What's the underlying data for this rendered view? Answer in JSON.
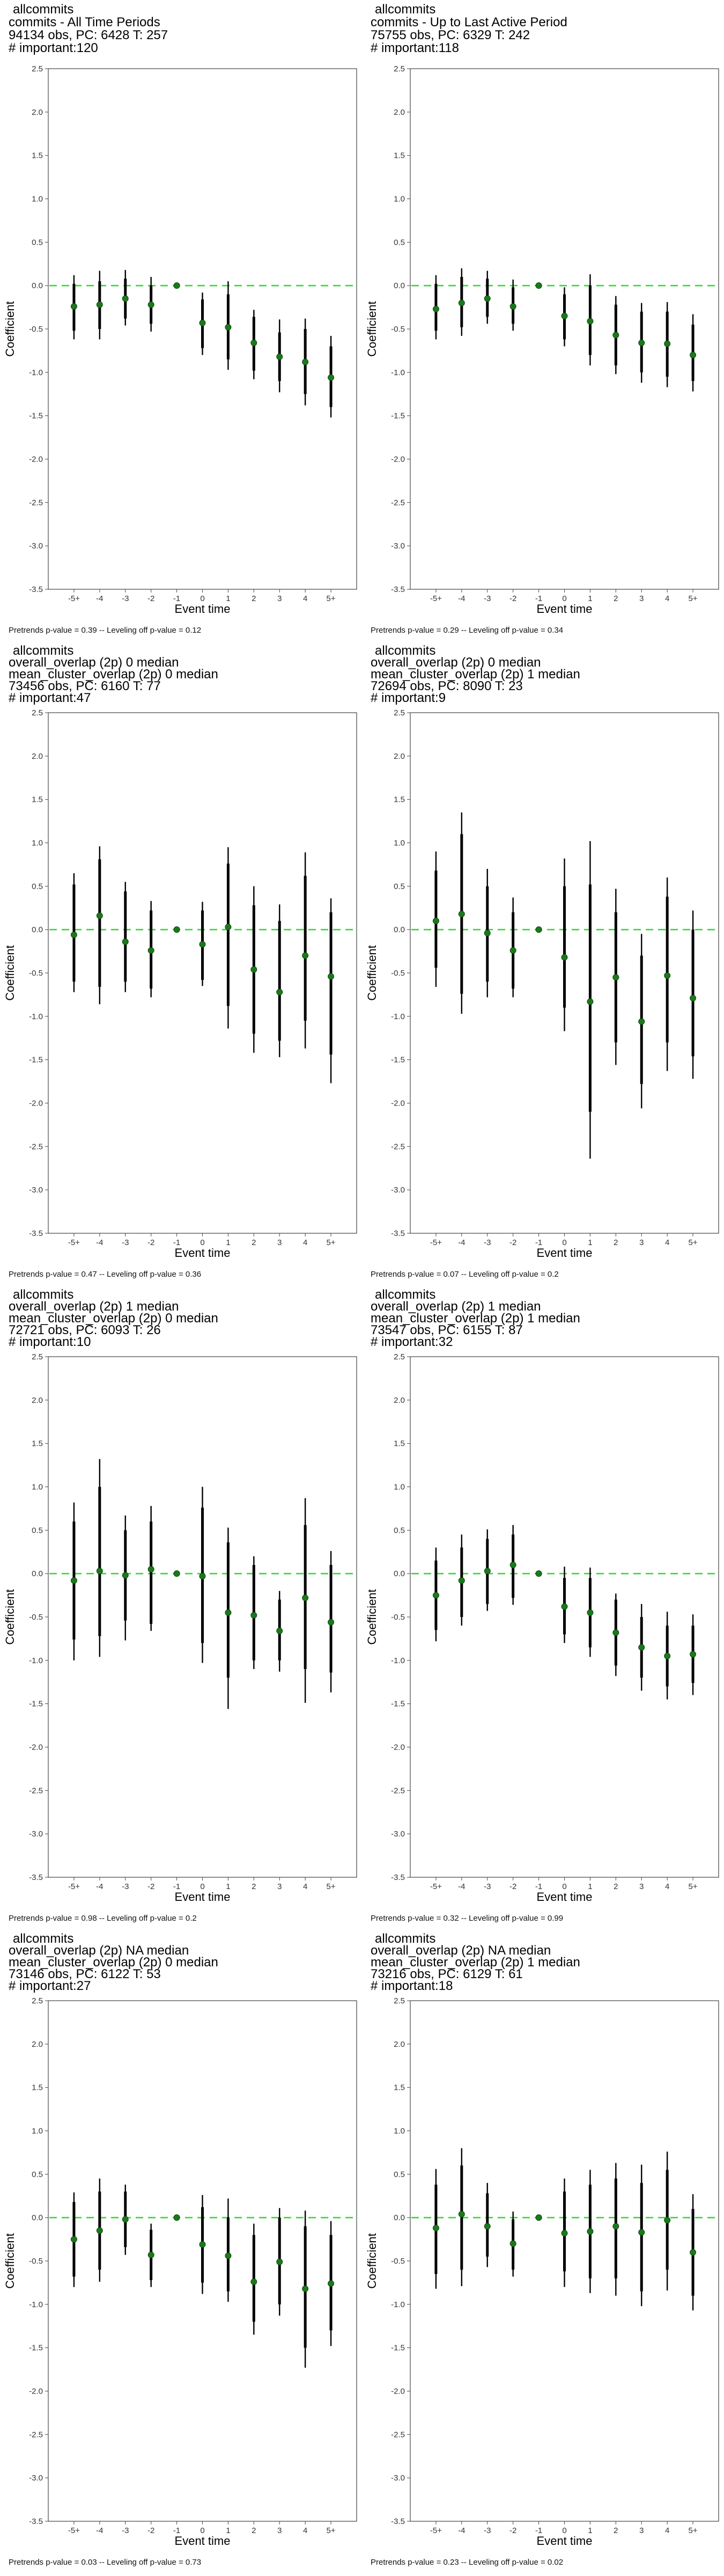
{
  "chart_data": [
    {
      "type": "scatter",
      "title_lines": [
        "allcommits",
        "commits - All Time Periods",
        "94134 obs, PC: 6428 T: 257",
        "# important:120"
      ],
      "footer": "Pretrends p-value = 0.39 -- Leveling off p-value = 0.12",
      "xlabel": "Event time",
      "ylabel": "Coefficient",
      "categories": [
        "-5+",
        "-4",
        "-3",
        "-2",
        "-1",
        "0",
        "1",
        "2",
        "3",
        "4",
        "5+"
      ],
      "ylim": [
        -3.5,
        2.5
      ],
      "yticks": [
        "-3.5",
        "-3.0",
        "-2.5",
        "-2.0",
        "-1.5",
        "-1.0",
        "-0.5",
        "0.0",
        "0.5",
        "1.0",
        "1.5",
        "2.0",
        "2.5"
      ],
      "reference_line": 0,
      "estimate": [
        -0.24,
        -0.22,
        -0.15,
        -0.22,
        0,
        -0.43,
        -0.48,
        -0.66,
        -0.82,
        -0.88,
        -1.06
      ],
      "ci95_low": [
        -0.62,
        -0.62,
        -0.46,
        -0.53,
        0,
        -0.8,
        -0.97,
        -1.08,
        -1.23,
        -1.38,
        -1.52
      ],
      "ci95_high": [
        0.12,
        0.17,
        0.18,
        0.1,
        0,
        -0.08,
        0.05,
        -0.28,
        -0.39,
        -0.38,
        -0.58
      ],
      "ci90_low": [
        -0.52,
        -0.5,
        -0.38,
        -0.44,
        0,
        -0.72,
        -0.85,
        -0.98,
        -1.1,
        -1.25,
        -1.4
      ],
      "ci90_high": [
        0.02,
        0.05,
        0.08,
        0.0,
        0,
        -0.16,
        -0.1,
        -0.36,
        -0.54,
        -0.5,
        -0.7
      ],
      "colors": {
        "point": "#1a7a1a",
        "error_bar": "#000000",
        "reference_line": "#33dd33"
      }
    },
    {
      "type": "scatter",
      "title_lines": [
        "allcommits",
        "commits - Up to Last Active Period",
        "75755 obs, PC: 6329 T: 242",
        "# important:118"
      ],
      "footer": "Pretrends p-value = 0.29 -- Leveling off p-value = 0.34",
      "xlabel": "Event time",
      "ylabel": "Coefficient",
      "categories": [
        "-5+",
        "-4",
        "-3",
        "-2",
        "-1",
        "0",
        "1",
        "2",
        "3",
        "4",
        "5+"
      ],
      "ylim": [
        -3.5,
        2.5
      ],
      "yticks": [
        "-3.5",
        "-3.0",
        "-2.5",
        "-2.0",
        "-1.5",
        "-1.0",
        "-0.5",
        "0.0",
        "0.5",
        "1.0",
        "1.5",
        "2.0",
        "2.5"
      ],
      "reference_line": 0,
      "estimate": [
        -0.27,
        -0.2,
        -0.15,
        -0.24,
        0,
        -0.35,
        -0.41,
        -0.57,
        -0.66,
        -0.67,
        -0.8
      ],
      "ci95_low": [
        -0.62,
        -0.58,
        -0.44,
        -0.52,
        0,
        -0.7,
        -0.92,
        -1.02,
        -1.12,
        -1.17,
        -1.22
      ],
      "ci95_high": [
        0.12,
        0.2,
        0.17,
        0.07,
        0,
        -0.02,
        0.13,
        -0.12,
        -0.2,
        -0.19,
        -0.33
      ],
      "ci90_low": [
        -0.52,
        -0.48,
        -0.36,
        -0.44,
        0,
        -0.62,
        -0.8,
        -0.92,
        -1.0,
        -1.05,
        -1.1
      ],
      "ci90_high": [
        0.02,
        0.1,
        0.08,
        -0.02,
        0,
        -0.1,
        0.0,
        -0.22,
        -0.3,
        -0.3,
        -0.45
      ],
      "colors": {
        "point": "#1a7a1a",
        "error_bar": "#000000",
        "reference_line": "#33dd33"
      }
    },
    {
      "type": "scatter",
      "title_lines": [
        "allcommits",
        "overall_overlap (2p) 0 median",
        "mean_cluster_overlap (2p) 0 median",
        "73456 obs, PC: 6160 T: 77",
        "# important:47"
      ],
      "footer": "Pretrends p-value = 0.47 -- Leveling off p-value = 0.36",
      "xlabel": "Event time",
      "ylabel": "Coefficient",
      "categories": [
        "-5+",
        "-4",
        "-3",
        "-2",
        "-1",
        "0",
        "1",
        "2",
        "3",
        "4",
        "5+"
      ],
      "ylim": [
        -3.5,
        2.5
      ],
      "yticks": [
        "-3.5",
        "-3.0",
        "-2.5",
        "-2.0",
        "-1.5",
        "-1.0",
        "-0.5",
        "0.0",
        "0.5",
        "1.0",
        "1.5",
        "2.0",
        "2.5"
      ],
      "reference_line": 0,
      "estimate": [
        -0.06,
        0.16,
        -0.14,
        -0.24,
        0,
        -0.17,
        0.03,
        -0.46,
        -0.72,
        -0.3,
        -0.54
      ],
      "ci95_low": [
        -0.72,
        -0.86,
        -0.72,
        -0.78,
        0,
        -0.65,
        -1.14,
        -1.42,
        -1.47,
        -1.37,
        -1.77
      ],
      "ci95_high": [
        0.65,
        0.96,
        0.55,
        0.33,
        0,
        0.32,
        0.95,
        0.5,
        0.29,
        0.89,
        0.36
      ],
      "ci90_low": [
        -0.6,
        -0.66,
        -0.6,
        -0.68,
        0,
        -0.58,
        -0.88,
        -1.2,
        -1.28,
        -1.05,
        -1.44
      ],
      "ci90_high": [
        0.52,
        0.81,
        0.44,
        0.22,
        0,
        0.22,
        0.76,
        0.28,
        0.1,
        0.62,
        0.2
      ],
      "colors": {
        "point": "#1a7a1a",
        "error_bar": "#000000",
        "reference_line": "#33dd33"
      }
    },
    {
      "type": "scatter",
      "title_lines": [
        "allcommits",
        "overall_overlap (2p) 0 median",
        "mean_cluster_overlap (2p) 1 median",
        "72694 obs, PC: 8090 T: 23",
        "# important:9"
      ],
      "footer": "Pretrends p-value = 0.07 -- Leveling off p-value = 0.2",
      "xlabel": "Event time",
      "ylabel": "Coefficient",
      "categories": [
        "-5+",
        "-4",
        "-3",
        "-2",
        "-1",
        "0",
        "1",
        "2",
        "3",
        "4",
        "5+"
      ],
      "ylim": [
        -3.5,
        2.5
      ],
      "yticks": [
        "-3.5",
        "-3.0",
        "-2.5",
        "-2.0",
        "-1.5",
        "-1.0",
        "-0.5",
        "0.0",
        "0.5",
        "1.0",
        "1.5",
        "2.0",
        "2.5"
      ],
      "reference_line": 0,
      "estimate": [
        0.1,
        0.18,
        -0.04,
        -0.24,
        0,
        -0.32,
        -0.83,
        -0.55,
        -1.06,
        -0.53,
        -0.79
      ],
      "ci95_low": [
        -0.66,
        -0.97,
        -0.78,
        -0.78,
        0,
        -1.17,
        -2.64,
        -1.56,
        -2.06,
        -1.63,
        -1.72
      ],
      "ci95_high": [
        0.9,
        1.35,
        0.7,
        0.37,
        0,
        0.82,
        1.02,
        0.47,
        -0.05,
        0.6,
        0.22
      ],
      "ci90_low": [
        -0.44,
        -0.74,
        -0.6,
        -0.68,
        0,
        -0.9,
        -2.1,
        -1.3,
        -1.78,
        -1.3,
        -1.46
      ],
      "ci90_high": [
        0.68,
        1.1,
        0.5,
        0.2,
        0,
        0.5,
        0.52,
        0.2,
        -0.3,
        0.38,
        0.0
      ],
      "colors": {
        "point": "#1a7a1a",
        "error_bar": "#000000",
        "reference_line": "#33dd33"
      }
    },
    {
      "type": "scatter",
      "title_lines": [
        "allcommits",
        "overall_overlap (2p) 1 median",
        "mean_cluster_overlap (2p) 0 median",
        "72721 obs, PC: 6093 T: 26",
        "# important:10"
      ],
      "footer": "Pretrends p-value = 0.98 -- Leveling off p-value = 0.2",
      "xlabel": "Event time",
      "ylabel": "Coefficient",
      "categories": [
        "-5+",
        "-4",
        "-3",
        "-2",
        "-1",
        "0",
        "1",
        "2",
        "3",
        "4",
        "5+"
      ],
      "ylim": [
        -3.5,
        2.5
      ],
      "yticks": [
        "-3.5",
        "-3.0",
        "-2.5",
        "-2.0",
        "-1.5",
        "-1.0",
        "-0.5",
        "0.0",
        "0.5",
        "1.0",
        "1.5",
        "2.0",
        "2.5"
      ],
      "reference_line": 0,
      "estimate": [
        -0.08,
        0.03,
        -0.02,
        0.05,
        0,
        -0.03,
        -0.45,
        -0.48,
        -0.66,
        -0.28,
        -0.56
      ],
      "ci95_low": [
        -1.0,
        -0.96,
        -0.77,
        -0.66,
        0,
        -1.03,
        -1.56,
        -1.1,
        -1.13,
        -1.49,
        -1.37
      ],
      "ci95_high": [
        0.82,
        1.32,
        0.67,
        0.78,
        0,
        1.0,
        0.53,
        0.2,
        -0.2,
        0.87,
        0.26
      ],
      "ci90_low": [
        -0.76,
        -0.72,
        -0.54,
        -0.58,
        0,
        -0.8,
        -1.2,
        -1.0,
        -1.0,
        -1.1,
        -1.14
      ],
      "ci90_high": [
        0.6,
        1.0,
        0.5,
        0.6,
        0,
        0.76,
        0.36,
        0.1,
        -0.3,
        0.56,
        0.1
      ],
      "colors": {
        "point": "#1a7a1a",
        "error_bar": "#000000",
        "reference_line": "#33dd33"
      }
    },
    {
      "type": "scatter",
      "title_lines": [
        "allcommits",
        "overall_overlap (2p) 1 median",
        "mean_cluster_overlap (2p) 1 median",
        "73547 obs, PC: 6155 T: 87",
        "# important:32"
      ],
      "footer": "Pretrends p-value = 0.32 -- Leveling off p-value = 0.99",
      "xlabel": "Event time",
      "ylabel": "Coefficient",
      "categories": [
        "-5+",
        "-4",
        "-3",
        "-2",
        "-1",
        "0",
        "1",
        "2",
        "3",
        "4",
        "5+"
      ],
      "ylim": [
        -3.5,
        2.5
      ],
      "yticks": [
        "-3.5",
        "-3.0",
        "-2.5",
        "-2.0",
        "-1.5",
        "-1.0",
        "-0.5",
        "0.0",
        "0.5",
        "1.0",
        "1.5",
        "2.0",
        "2.5"
      ],
      "reference_line": 0,
      "estimate": [
        -0.25,
        -0.08,
        0.03,
        0.1,
        0,
        -0.38,
        -0.45,
        -0.68,
        -0.85,
        -0.95,
        -0.93
      ],
      "ci95_low": [
        -0.78,
        -0.6,
        -0.43,
        -0.36,
        0,
        -0.8,
        -0.96,
        -1.18,
        -1.35,
        -1.45,
        -1.4
      ],
      "ci95_high": [
        0.3,
        0.45,
        0.51,
        0.56,
        0,
        0.08,
        0.07,
        -0.23,
        -0.35,
        -0.44,
        -0.47
      ],
      "ci90_low": [
        -0.65,
        -0.5,
        -0.35,
        -0.28,
        0,
        -0.7,
        -0.85,
        -1.06,
        -1.2,
        -1.3,
        -1.26
      ],
      "ci90_high": [
        0.15,
        0.3,
        0.4,
        0.45,
        0,
        -0.05,
        -0.05,
        -0.3,
        -0.5,
        -0.6,
        -0.6
      ],
      "colors": {
        "point": "#1a7a1a",
        "error_bar": "#000000",
        "reference_line": "#33dd33"
      }
    },
    {
      "type": "scatter",
      "title_lines": [
        "allcommits",
        "overall_overlap (2p) NA median",
        "mean_cluster_overlap (2p) 0 median",
        "73146 obs, PC: 6122 T: 53",
        "# important:27"
      ],
      "footer": "Pretrends p-value = 0.03 -- Leveling off p-value = 0.73",
      "xlabel": "Event time",
      "ylabel": "Coefficient",
      "categories": [
        "-5+",
        "-4",
        "-3",
        "-2",
        "-1",
        "0",
        "1",
        "2",
        "3",
        "4",
        "5+"
      ],
      "ylim": [
        -3.5,
        2.5
      ],
      "yticks": [
        "-3.5",
        "-3.0",
        "-2.5",
        "-2.0",
        "-1.5",
        "-1.0",
        "-0.5",
        "0.0",
        "0.5",
        "1.0",
        "1.5",
        "2.0",
        "2.5"
      ],
      "reference_line": 0,
      "estimate": [
        -0.25,
        -0.15,
        -0.02,
        -0.43,
        0,
        -0.31,
        -0.44,
        -0.74,
        -0.51,
        -0.82,
        -0.76
      ],
      "ci95_low": [
        -0.8,
        -0.74,
        -0.43,
        -0.8,
        0,
        -0.88,
        -0.97,
        -1.35,
        -1.13,
        -1.73,
        -1.48
      ],
      "ci95_high": [
        0.29,
        0.45,
        0.38,
        -0.07,
        0,
        0.26,
        0.22,
        -0.07,
        0.11,
        0.08,
        -0.04
      ],
      "ci90_low": [
        -0.68,
        -0.6,
        -0.34,
        -0.72,
        0,
        -0.75,
        -0.85,
        -1.2,
        -1.0,
        -1.5,
        -1.3
      ],
      "ci90_high": [
        0.18,
        0.3,
        0.3,
        -0.14,
        0,
        0.12,
        0.0,
        -0.2,
        0.0,
        -0.1,
        -0.2
      ],
      "colors": {
        "point": "#1a7a1a",
        "error_bar": "#000000",
        "reference_line": "#33dd33"
      }
    },
    {
      "type": "scatter",
      "title_lines": [
        "allcommits",
        "overall_overlap (2p) NA median",
        "mean_cluster_overlap (2p) 1 median",
        "73216 obs, PC: 6129 T: 61",
        "# important:18"
      ],
      "footer": "Pretrends p-value = 0.23 -- Leveling off p-value = 0.02",
      "xlabel": "Event time",
      "ylabel": "Coefficient",
      "categories": [
        "-5+",
        "-4",
        "-3",
        "-2",
        "-1",
        "0",
        "1",
        "2",
        "3",
        "4",
        "5+"
      ],
      "ylim": [
        -3.5,
        2.5
      ],
      "yticks": [
        "-3.5",
        "-3.0",
        "-2.5",
        "-2.0",
        "-1.5",
        "-1.0",
        "-0.5",
        "0.0",
        "0.5",
        "1.0",
        "1.5",
        "2.0",
        "2.5"
      ],
      "reference_line": 0,
      "estimate": [
        -0.12,
        0.04,
        -0.1,
        -0.3,
        0,
        -0.18,
        -0.16,
        -0.1,
        -0.17,
        -0.03,
        -0.4
      ],
      "ci95_low": [
        -0.82,
        -0.79,
        -0.57,
        -0.68,
        0,
        -0.8,
        -0.87,
        -0.9,
        -1.02,
        -0.84,
        -1.07
      ],
      "ci95_high": [
        0.56,
        0.8,
        0.4,
        0.07,
        0,
        0.45,
        0.55,
        0.63,
        0.61,
        0.76,
        0.27
      ],
      "ci90_low": [
        -0.65,
        -0.6,
        -0.45,
        -0.6,
        0,
        -0.62,
        -0.7,
        -0.7,
        -0.85,
        -0.6,
        -0.9
      ],
      "ci90_high": [
        0.38,
        0.6,
        0.28,
        -0.02,
        0,
        0.3,
        0.38,
        0.45,
        0.4,
        0.55,
        0.1
      ],
      "colors": {
        "point": "#1a7a1a",
        "error_bar": "#000000",
        "reference_line": "#33dd33"
      }
    }
  ]
}
